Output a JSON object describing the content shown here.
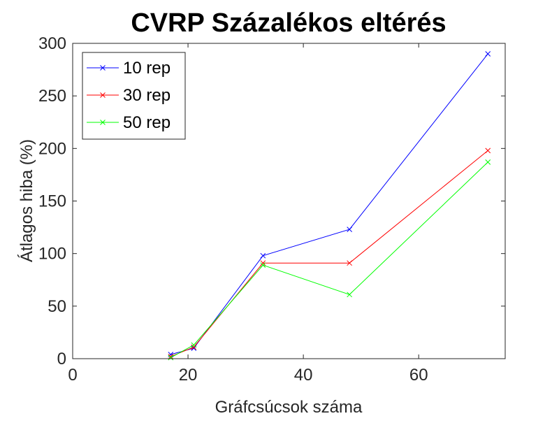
{
  "chart_data": {
    "type": "line",
    "title": "CVRP Százalékos eltérés",
    "xlabel": "Gráfcsúcsok száma",
    "ylabel": "Átlagos hiba (%)",
    "xlim": [
      0,
      75
    ],
    "ylim": [
      0,
      300
    ],
    "x_ticks": [
      0,
      20,
      40,
      60
    ],
    "y_ticks": [
      0,
      50,
      100,
      150,
      200,
      250,
      300
    ],
    "grid": false,
    "legend_position": "top-left",
    "x": [
      17,
      21,
      33,
      48,
      72
    ],
    "series": [
      {
        "name": "10 rep",
        "color": "#0000ff",
        "marker": "x",
        "values": [
          4,
          10,
          98,
          123,
          290
        ]
      },
      {
        "name": "30 rep",
        "color": "#ff0000",
        "marker": "x",
        "values": [
          2,
          11,
          91,
          91,
          198
        ]
      },
      {
        "name": "50 rep",
        "color": "#00ff00",
        "marker": "x",
        "values": [
          1,
          13,
          89,
          61,
          187
        ]
      }
    ]
  }
}
